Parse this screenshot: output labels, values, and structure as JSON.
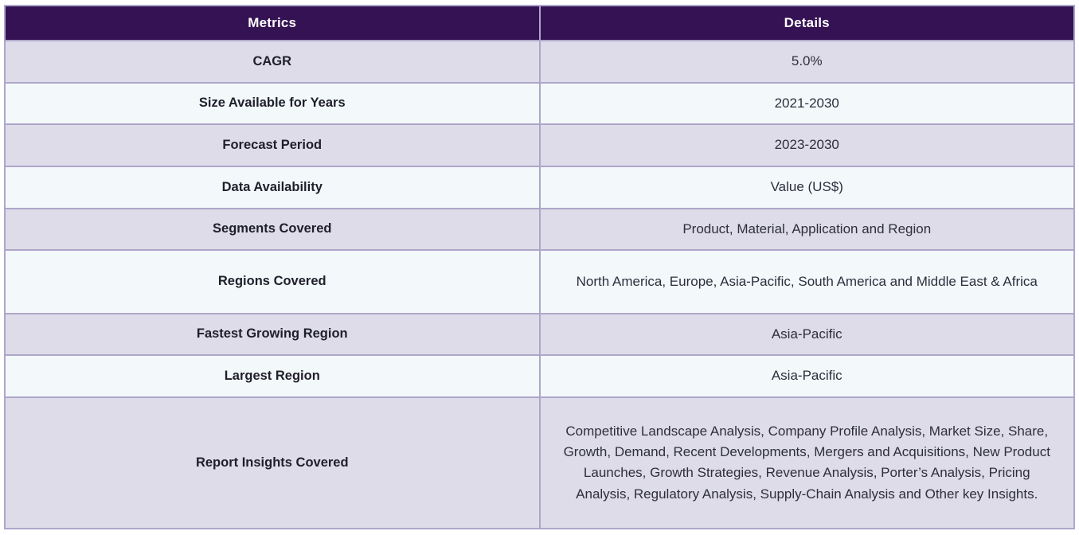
{
  "table": {
    "columns": [
      "Metrics",
      "Details"
    ],
    "rows": [
      {
        "metric": "CAGR",
        "detail": "5.0%"
      },
      {
        "metric": "Size Available for Years",
        "detail": "2021-2030"
      },
      {
        "metric": "Forecast Period",
        "detail": "2023-2030"
      },
      {
        "metric": "Data Availability",
        "detail": "Value (US$)"
      },
      {
        "metric": "Segments Covered",
        "detail": "Product, Material, Application and Region"
      },
      {
        "metric": "Regions Covered",
        "detail": "North America, Europe, Asia-Pacific, South America and Middle East & Africa"
      },
      {
        "metric": "Fastest Growing Region",
        "detail": "Asia-Pacific"
      },
      {
        "metric": "Largest Region",
        "detail": "Asia-Pacific"
      },
      {
        "metric": "Report Insights Covered",
        "detail": "Competitive Landscape Analysis, Company Profile Analysis, Market Size, Share, Growth, Demand, Recent Developments, Mergers and Acquisitions, New Product Launches, Growth Strategies, Revenue Analysis, Porter’s Analysis, Pricing Analysis, Regulatory Analysis, Supply-Chain Analysis and Other key Insights."
      }
    ]
  },
  "colors": {
    "header_bg": "#341253",
    "header_text": "#ffffff",
    "row_lavender": "#dedce9",
    "row_light": "#f3f8fb",
    "border": "#aea6c9",
    "metric_text": "#1f1f2b",
    "detail_text": "#2e2e3c"
  }
}
